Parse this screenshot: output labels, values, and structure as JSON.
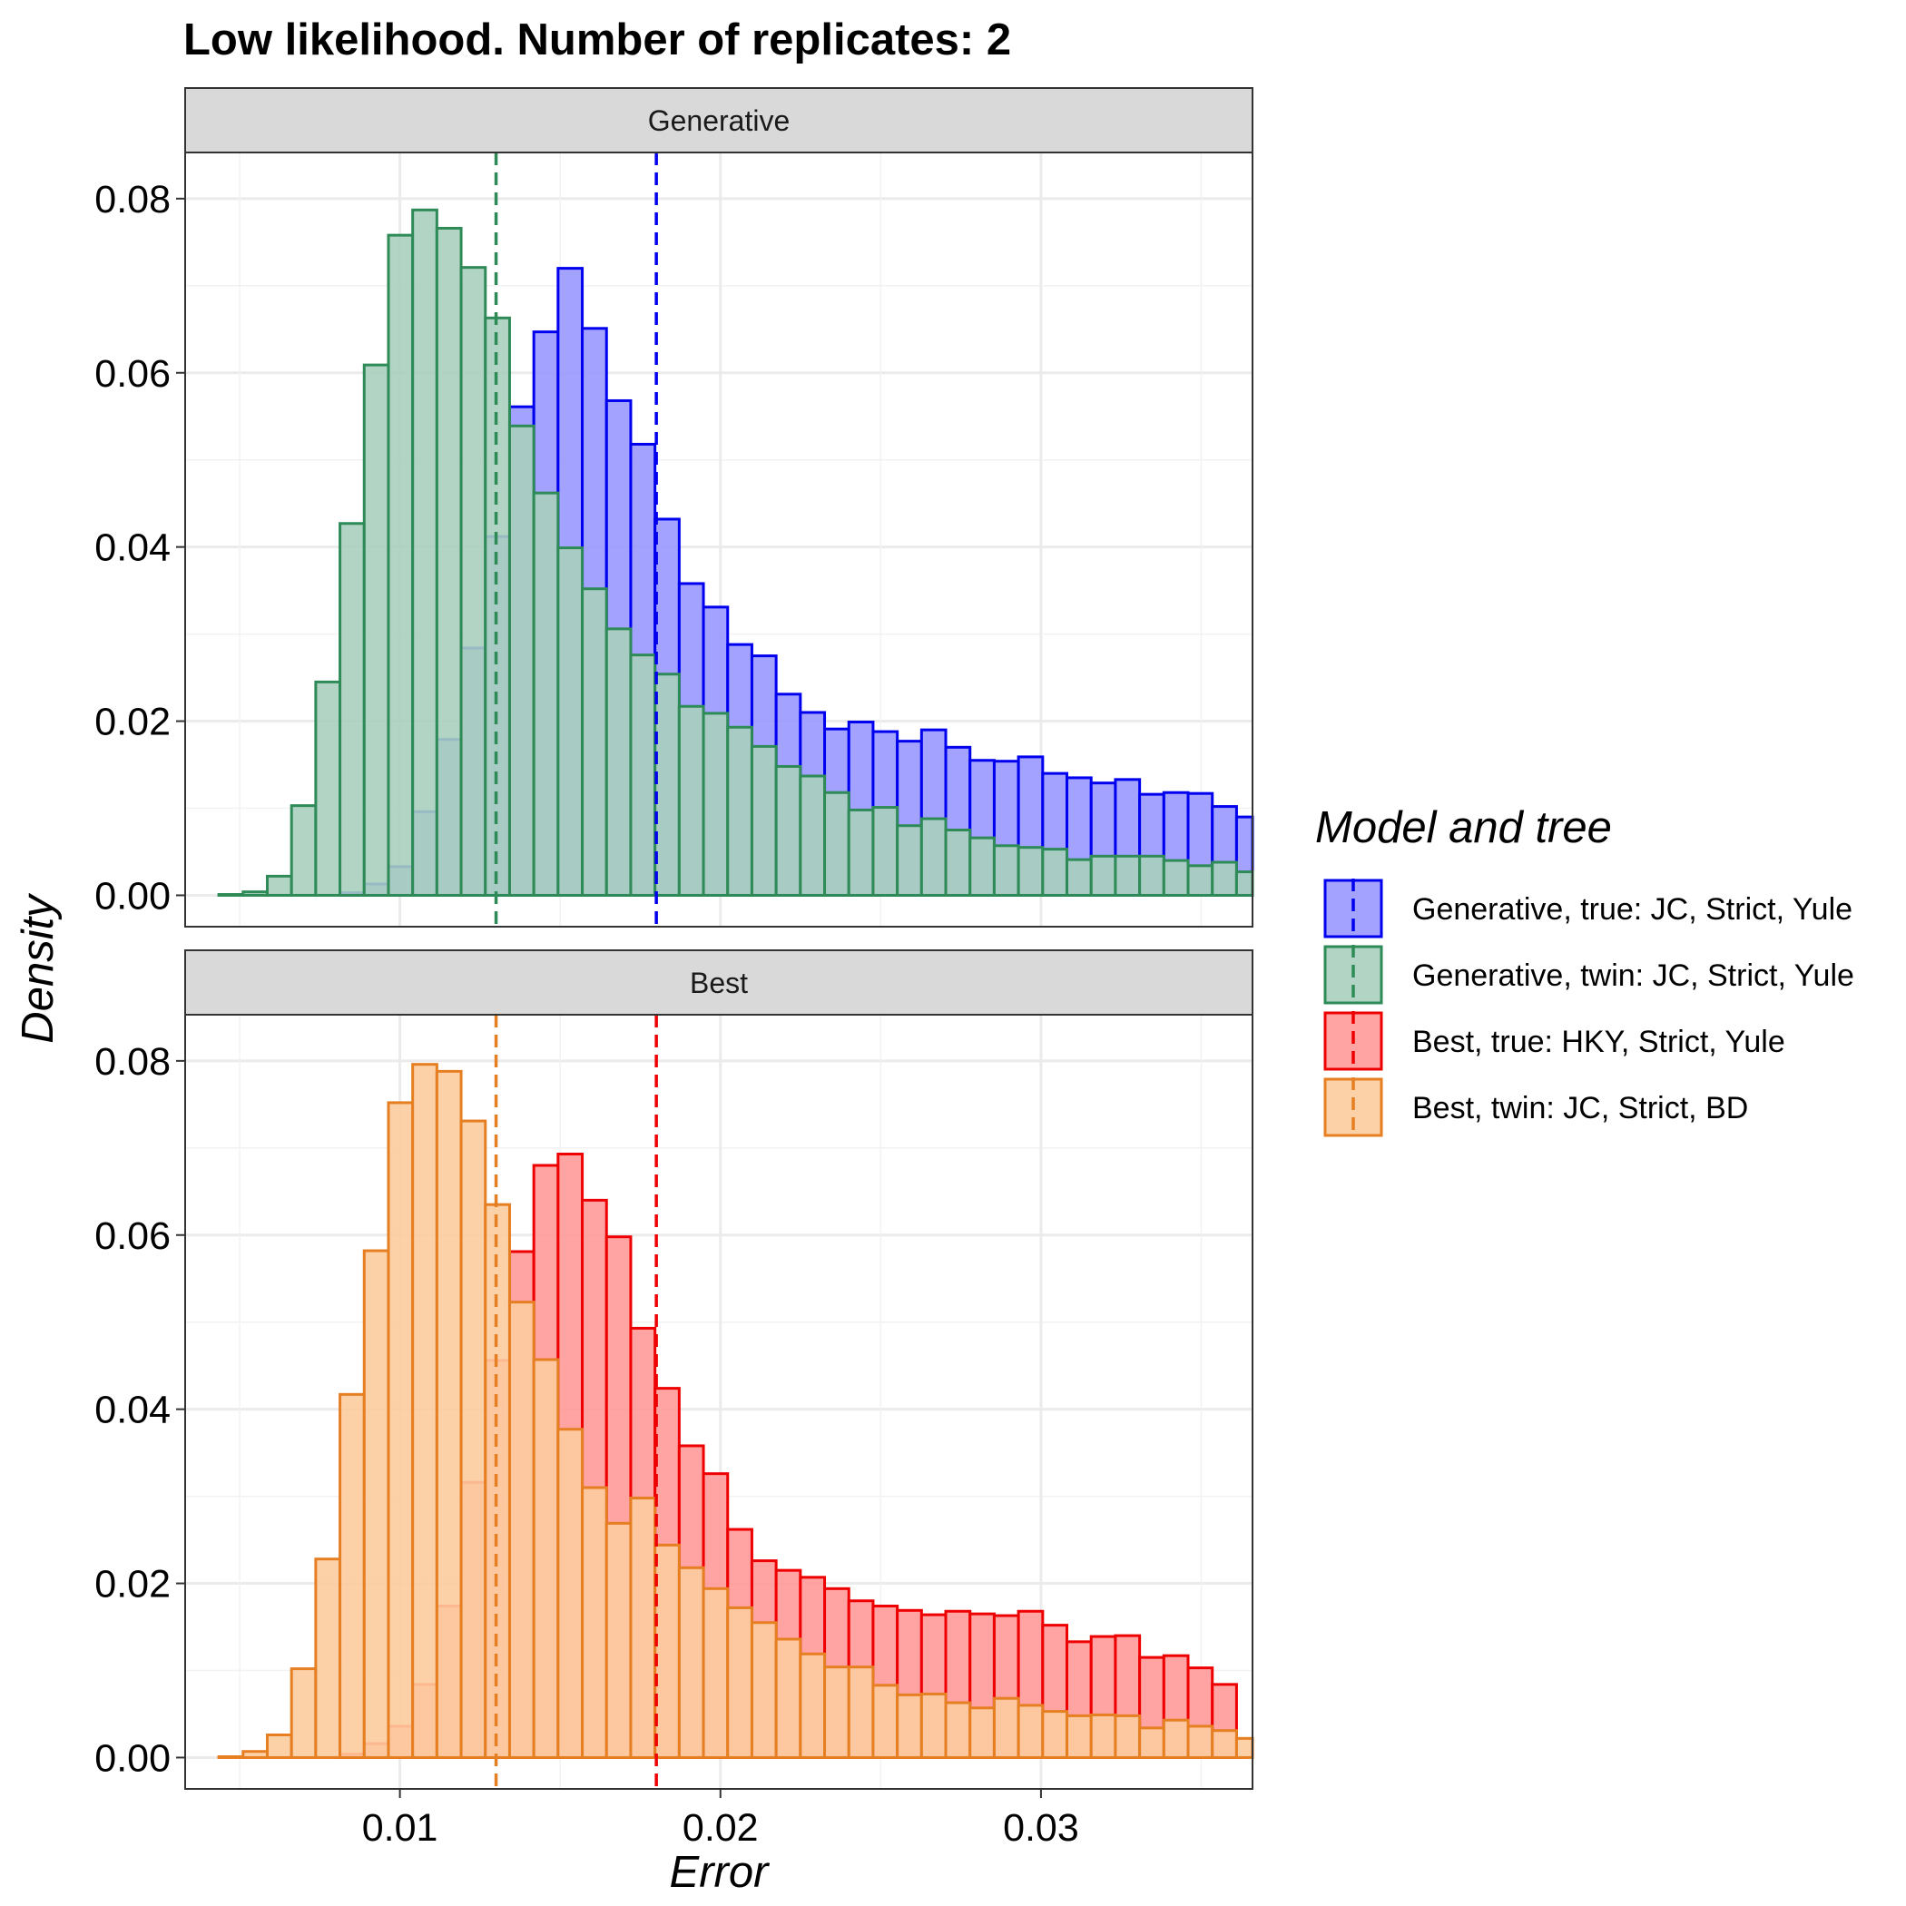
{
  "chart_data": {
    "type": "histogram",
    "title": "Low likelihood. Number of replicates:  2",
    "xlabel": "Error",
    "ylabel": "Density",
    "xlim": [
      0.0033,
      0.0366
    ],
    "ylim": [
      -0.0036,
      0.0853
    ],
    "x_ticks": [
      0.01,
      0.02,
      0.03
    ],
    "x_tick_labels": [
      "0.01",
      "0.02",
      "0.03"
    ],
    "y_ticks": [
      0,
      0.02,
      0.04,
      0.06,
      0.08
    ],
    "y_tick_labels": [
      "0.00",
      "0.02",
      "0.04",
      "0.06",
      "0.08"
    ],
    "grid": true,
    "legend": {
      "title": "Model and tree",
      "position": "right"
    },
    "bins": {
      "start": 0.00435,
      "width": 0.000756
    },
    "panels": [
      {
        "label": "Generative",
        "series": [
          {
            "name": "Generative, true: JC, Strict, Yule",
            "color": "#0000ee",
            "fill": "#9999ff",
            "mean": 0.018,
            "values": [
              0,
              0,
              0,
              0,
              0,
              0.0003,
              0.0013,
              0.0033,
              0.0096,
              0.0179,
              0.0284,
              0.0412,
              0.0561,
              0.0647,
              0.072,
              0.0651,
              0.0568,
              0.0518,
              0.0432,
              0.0358,
              0.0331,
              0.0288,
              0.0275,
              0.0231,
              0.021,
              0.0191,
              0.0199,
              0.0188,
              0.0177,
              0.019,
              0.017,
              0.0155,
              0.0154,
              0.0159,
              0.014,
              0.0135,
              0.0129,
              0.0133,
              0.0116,
              0.0118,
              0.0117,
              0.0102,
              0.009
            ]
          },
          {
            "name": "Generative, twin: JC, Strict, Yule",
            "color": "#2e8b57",
            "fill": "#a9cfbe",
            "mean": 0.013,
            "values": [
              0.0001,
              0.0004,
              0.0022,
              0.0103,
              0.0245,
              0.0427,
              0.0609,
              0.0758,
              0.0787,
              0.0766,
              0.0721,
              0.0663,
              0.0539,
              0.0462,
              0.0399,
              0.0352,
              0.0306,
              0.0276,
              0.0254,
              0.0217,
              0.0209,
              0.0193,
              0.0171,
              0.0148,
              0.0137,
              0.0118,
              0.0098,
              0.0101,
              0.008,
              0.0088,
              0.0075,
              0.0066,
              0.0057,
              0.0055,
              0.0053,
              0.0041,
              0.0045,
              0.0045,
              0.0045,
              0.004,
              0.0034,
              0.0038,
              0.0027,
              0.0029
            ]
          }
        ]
      },
      {
        "label": "Best",
        "series": [
          {
            "name": "Best, true: HKY, Strict, Yule",
            "color": "#ee0000",
            "fill": "#ff9999",
            "mean": 0.018,
            "values": [
              0,
              0,
              0,
              0,
              0,
              0.0004,
              0.0016,
              0.0036,
              0.0084,
              0.0174,
              0.0316,
              0.0456,
              0.0581,
              0.068,
              0.0693,
              0.064,
              0.0598,
              0.0493,
              0.0424,
              0.0358,
              0.0326,
              0.0262,
              0.0226,
              0.0215,
              0.0207,
              0.0194,
              0.018,
              0.0174,
              0.0169,
              0.0164,
              0.0168,
              0.0165,
              0.0163,
              0.0168,
              0.0152,
              0.0133,
              0.0139,
              0.014,
              0.0115,
              0.0117,
              0.0103,
              0.0084
            ]
          },
          {
            "name": "Best, twin: JC, Strict, BD",
            "color": "#e67e22",
            "fill": "#fdcc9e",
            "mean": 0.013,
            "values": [
              0.0001,
              0.0007,
              0.0026,
              0.0102,
              0.0228,
              0.0417,
              0.0582,
              0.0752,
              0.0796,
              0.0788,
              0.0731,
              0.0635,
              0.0523,
              0.0457,
              0.0377,
              0.031,
              0.0269,
              0.0298,
              0.0244,
              0.0218,
              0.0194,
              0.0172,
              0.0155,
              0.0136,
              0.0119,
              0.0104,
              0.0104,
              0.0083,
              0.0072,
              0.0073,
              0.0063,
              0.0057,
              0.0068,
              0.006,
              0.0053,
              0.0048,
              0.0049,
              0.0048,
              0.0034,
              0.0043,
              0.0036,
              0.0031,
              0.0022
            ]
          }
        ]
      }
    ]
  }
}
